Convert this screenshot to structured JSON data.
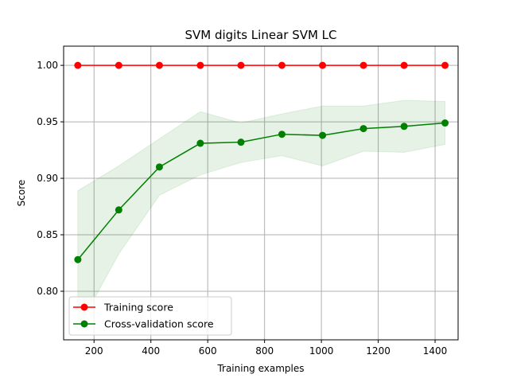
{
  "chart_data": {
    "type": "line",
    "title": "SVM digits Linear  SVM LC",
    "xlabel": "Training examples",
    "ylabel": "Score",
    "xlim": [
      93,
      1481
    ],
    "ylim": [
      0.757,
      1.017
    ],
    "xticks": [
      200,
      400,
      600,
      800,
      1000,
      1200,
      1400
    ],
    "xtick_labels": [
      "200",
      "400",
      "600",
      "800",
      "1000",
      "1200",
      "1400"
    ],
    "yticks": [
      0.8,
      0.85,
      0.9,
      0.95,
      1.0
    ],
    "ytick_labels": [
      "0.80",
      "0.85",
      "0.90",
      "0.95",
      "1.00"
    ],
    "grid": true,
    "legend_position": "lower-left",
    "x": [
      143,
      287,
      430,
      574,
      717,
      861,
      1004,
      1148,
      1291,
      1435
    ],
    "series": [
      {
        "name": "Training score",
        "color": "#ff0000",
        "values": [
          1.0,
          1.0,
          1.0,
          1.0,
          1.0,
          1.0,
          1.0,
          1.0,
          1.0,
          1.0
        ],
        "band_lower": [
          1.0,
          1.0,
          1.0,
          1.0,
          1.0,
          1.0,
          1.0,
          1.0,
          1.0,
          1.0
        ],
        "band_upper": [
          1.0,
          1.0,
          1.0,
          1.0,
          1.0,
          1.0,
          1.0,
          1.0,
          1.0,
          1.0
        ]
      },
      {
        "name": "Cross-validation score",
        "color": "#008000",
        "values": [
          0.828,
          0.872,
          0.91,
          0.931,
          0.932,
          0.939,
          0.938,
          0.944,
          0.946,
          0.949
        ],
        "band_lower": [
          0.767,
          0.833,
          0.885,
          0.903,
          0.914,
          0.92,
          0.911,
          0.924,
          0.923,
          0.93
        ],
        "band_upper": [
          0.889,
          0.911,
          0.935,
          0.959,
          0.949,
          0.957,
          0.964,
          0.964,
          0.969,
          0.968
        ]
      }
    ]
  }
}
